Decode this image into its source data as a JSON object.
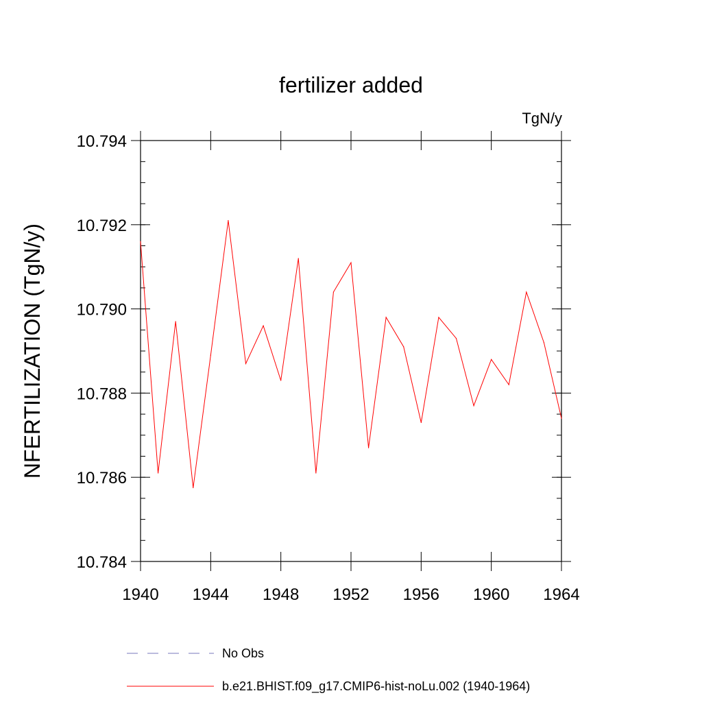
{
  "chart_data": {
    "type": "line",
    "title": "fertilizer added",
    "units": "TgN/y",
    "ylabel": "NFERTILIZATION  (TgN/y)",
    "xlabel": "",
    "xlim": [
      1940,
      1964
    ],
    "ylim": [
      10.784,
      10.794
    ],
    "x_ticks": [
      1940,
      1944,
      1948,
      1952,
      1956,
      1960,
      1964
    ],
    "x_tick_labels": [
      "1940",
      "1944",
      "1948",
      "1952",
      "1956",
      "1960",
      "1964"
    ],
    "y_ticks": [
      10.784,
      10.786,
      10.788,
      10.79,
      10.792,
      10.794
    ],
    "y_tick_labels": [
      "10.784",
      "10.786",
      "10.788",
      "10.790",
      "10.792",
      "10.794"
    ],
    "series": [
      {
        "name": "b.e21.BHIST.f09_g17.CMIP6-hist-noLu.002 (1940-1964)",
        "color": "#ff0000",
        "style": "solid",
        "x": [
          1940,
          1941,
          1942,
          1943,
          1944,
          1945,
          1946,
          1947,
          1948,
          1949,
          1950,
          1951,
          1952,
          1953,
          1954,
          1955,
          1956,
          1957,
          1958,
          1959,
          1960,
          1961,
          1962,
          1963,
          1964
        ],
        "values": [
          10.7916,
          10.7861,
          10.7897,
          10.78575,
          10.7889,
          10.7921,
          10.7887,
          10.7896,
          10.7883,
          10.7912,
          10.7861,
          10.7904,
          10.7911,
          10.7867,
          10.7898,
          10.7891,
          10.7873,
          10.7898,
          10.7893,
          10.7877,
          10.7888,
          10.7882,
          10.7904,
          10.7892,
          10.7874
        ]
      }
    ],
    "legend": {
      "placement": "bottom",
      "entries": [
        {
          "label": "No Obs",
          "color": "#7777bb",
          "style": "dashed"
        },
        {
          "label": "b.e21.BHIST.f09_g17.CMIP6-hist-noLu.002 (1940-1964)",
          "color": "#ff0000",
          "style": "solid"
        }
      ]
    }
  }
}
